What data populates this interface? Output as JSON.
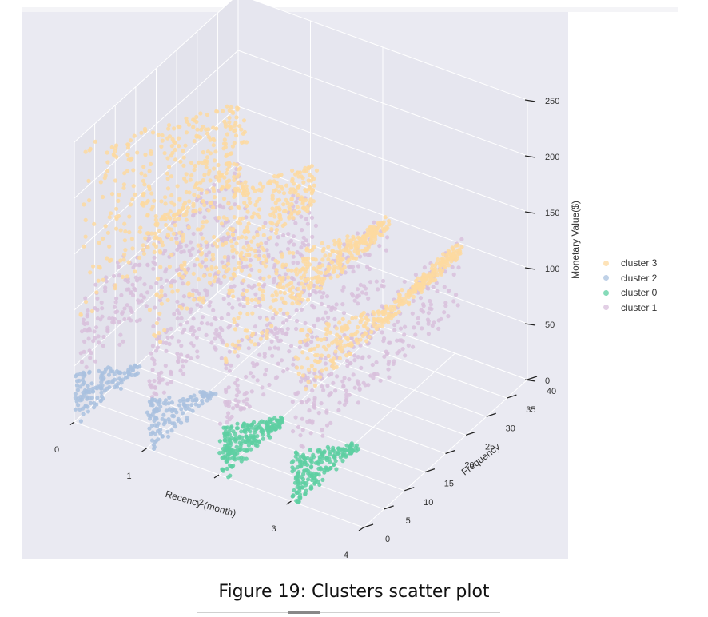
{
  "chart_data": {
    "type": "scatter",
    "projection": "3d",
    "title": "",
    "xlabel": "Recency (month)",
    "ylabel": "Frequency",
    "zlabel": "Monetary Value($)",
    "xlim": [
      0,
      4
    ],
    "ylim": [
      0,
      40
    ],
    "zlim": [
      0,
      250
    ],
    "x_ticks": [
      "0",
      "1",
      "2",
      "3",
      "4"
    ],
    "y_ticks": [
      "0",
      "5",
      "10",
      "15",
      "20",
      "25",
      "30",
      "35",
      "40"
    ],
    "z_ticks": [
      "0",
      "50",
      "100",
      "150",
      "200",
      "250"
    ],
    "grid": true,
    "legend_position": "right",
    "series": [
      {
        "name": "cluster 3",
        "color": "#fdd9a0",
        "x_range": [
          0,
          4
        ],
        "y_range": [
          0,
          40
        ],
        "z_range": [
          90,
          250
        ]
      },
      {
        "name": "cluster 2",
        "color": "#a9c1df",
        "x_range": [
          0,
          2
        ],
        "y_range": [
          0,
          15
        ],
        "z_range": [
          0,
          45
        ]
      },
      {
        "name": "cluster 0",
        "color": "#5ecfa2",
        "x_range": [
          2,
          4
        ],
        "y_range": [
          0,
          15
        ],
        "z_range": [
          0,
          45
        ]
      },
      {
        "name": "cluster 1",
        "color": "#d8bfdc",
        "x_range": [
          0,
          4
        ],
        "y_range": [
          0,
          40
        ],
        "z_range": [
          40,
          110
        ]
      }
    ]
  },
  "legend": {
    "items": [
      {
        "label": "cluster 3",
        "color": "#fdd9a0"
      },
      {
        "label": "cluster 2",
        "color": "#a9c1df"
      },
      {
        "label": "cluster 0",
        "color": "#5ecfa2"
      },
      {
        "label": "cluster 1",
        "color": "#d8bfdc"
      }
    ]
  },
  "caption": "Figure 19: Clusters scatter plot"
}
